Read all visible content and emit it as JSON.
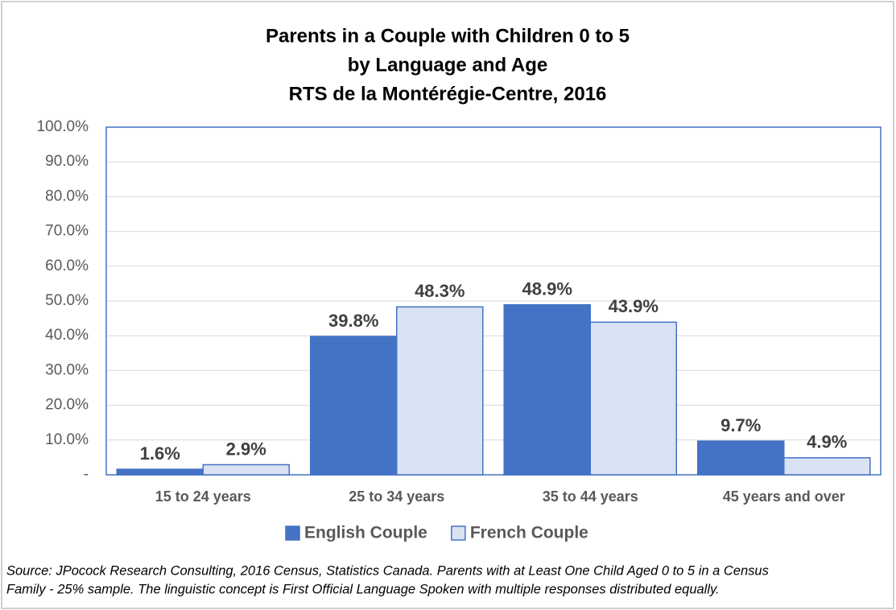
{
  "chart_data": {
    "type": "bar",
    "title": [
      "Parents in a Couple with Children 0 to 5",
      "by Language and Age",
      "RTS de la Montérégie-Centre, 2016"
    ],
    "categories": [
      "15 to 24 years",
      "25 to 34 years",
      "35 to 44 years",
      "45 years and over"
    ],
    "series": [
      {
        "name": "English Couple",
        "color": "#4472c4",
        "values": [
          1.6,
          39.8,
          48.9,
          9.7
        ],
        "value_labels": [
          "1.6%",
          "39.8%",
          "48.9%",
          "9.7%"
        ]
      },
      {
        "name": "French Couple",
        "color": "#dae3f3",
        "values": [
          2.9,
          48.3,
          43.9,
          4.9
        ],
        "value_labels": [
          "2.9%",
          "48.3%",
          "43.9%",
          "4.9%"
        ]
      }
    ],
    "ylim": [
      0,
      100
    ],
    "yticks": [
      {
        "value": 0,
        "label": "-"
      },
      {
        "value": 10,
        "label": "10.0%"
      },
      {
        "value": 20,
        "label": "20.0%"
      },
      {
        "value": 30,
        "label": "30.0%"
      },
      {
        "value": 40,
        "label": "40.0%"
      },
      {
        "value": 50,
        "label": "50.0%"
      },
      {
        "value": 60,
        "label": "60.0%"
      },
      {
        "value": 70,
        "label": "70.0%"
      },
      {
        "value": 80,
        "label": "80.0%"
      },
      {
        "value": 90,
        "label": "90.0%"
      },
      {
        "value": 100,
        "label": "100.0%"
      }
    ],
    "grid": true,
    "legend": "bottom",
    "footnote": [
      "Source: JPocock Research Consulting, 2016 Census, Statistics Canada. Parents with at Least One Child Aged 0 to 5 in a Census",
      "Family - 25% sample. The linguistic concept is First Official Language Spoken with multiple responses distributed equally."
    ]
  }
}
